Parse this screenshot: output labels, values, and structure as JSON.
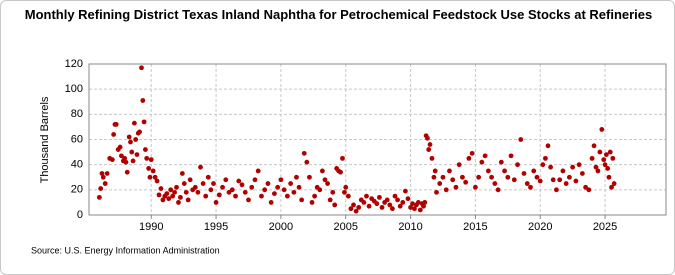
{
  "chart_data": {
    "type": "scatter",
    "title": "Monthly Refining District Texas Inland Naphtha for Petrochemical Feedstock Use Stocks at Refineries",
    "ylabel": "Thousand Barrels",
    "source": "Source: U.S. Energy Information Administration",
    "color": "#b00000",
    "grid": true,
    "xlim": [
      1985.2,
      2029.7
    ],
    "xticks": [
      1990,
      1995,
      2000,
      2005,
      2010,
      2015,
      2020,
      2025
    ],
    "ylim": [
      0,
      120
    ],
    "yticks": [
      0,
      20,
      40,
      60,
      80,
      100,
      120
    ],
    "x": [
      1986.0,
      1986.1,
      1986.2,
      1986.3,
      1986.45,
      1986.6,
      1986.8,
      1987.0,
      1987.1,
      1987.2,
      1987.3,
      1987.45,
      1987.6,
      1987.7,
      1987.85,
      1987.95,
      1988.05,
      1988.15,
      1988.3,
      1988.4,
      1988.5,
      1988.6,
      1988.7,
      1988.8,
      1988.9,
      1989.0,
      1989.1,
      1989.25,
      1989.35,
      1989.45,
      1989.55,
      1989.65,
      1989.8,
      1989.9,
      1990.0,
      1990.15,
      1990.3,
      1990.45,
      1990.6,
      1990.75,
      1990.9,
      1991.05,
      1991.2,
      1991.35,
      1991.5,
      1991.65,
      1991.8,
      1991.95,
      1992.1,
      1992.25,
      1992.4,
      1992.55,
      1992.7,
      1992.85,
      1993.0,
      1993.2,
      1993.4,
      1993.6,
      1993.8,
      1994.0,
      1994.2,
      1994.4,
      1994.6,
      1994.8,
      1995.0,
      1995.25,
      1995.5,
      1995.75,
      1996.0,
      1996.25,
      1996.5,
      1996.75,
      1997.0,
      1997.25,
      1997.5,
      1997.75,
      1998.0,
      1998.25,
      1998.5,
      1998.75,
      1999.0,
      1999.25,
      1999.5,
      1999.75,
      2000.0,
      2000.25,
      2000.5,
      2000.75,
      2001.0,
      2001.2,
      2001.4,
      2001.6,
      2001.8,
      2002.0,
      2002.2,
      2002.4,
      2002.6,
      2002.8,
      2003.0,
      2003.2,
      2003.4,
      2003.6,
      2003.8,
      2004.0,
      2004.15,
      2004.3,
      2004.45,
      2004.6,
      2004.75,
      2004.9,
      2005.0,
      2005.2,
      2005.4,
      2005.6,
      2005.8,
      2006.0,
      2006.2,
      2006.4,
      2006.6,
      2006.8,
      2007.0,
      2007.2,
      2007.4,
      2007.6,
      2007.8,
      2008.0,
      2008.2,
      2008.4,
      2008.6,
      2008.8,
      2009.0,
      2009.2,
      2009.4,
      2009.6,
      2009.8,
      2010.0,
      2010.15,
      2010.3,
      2010.45,
      2010.6,
      2010.75,
      2010.9,
      2011.0,
      2011.1,
      2011.2,
      2011.3,
      2011.4,
      2011.5,
      2011.65,
      2011.8,
      2011.9,
      2012.0,
      2012.25,
      2012.5,
      2012.75,
      2013.0,
      2013.25,
      2013.5,
      2013.75,
      2014.0,
      2014.25,
      2014.5,
      2014.75,
      2015.0,
      2015.25,
      2015.5,
      2015.75,
      2016.0,
      2016.25,
      2016.5,
      2016.75,
      2017.0,
      2017.25,
      2017.5,
      2017.75,
      2018.0,
      2018.25,
      2018.5,
      2018.75,
      2019.0,
      2019.25,
      2019.5,
      2019.75,
      2020.0,
      2020.2,
      2020.4,
      2020.6,
      2020.8,
      2021.0,
      2021.25,
      2021.5,
      2021.75,
      2022.0,
      2022.25,
      2022.5,
      2022.75,
      2023.0,
      2023.25,
      2023.5,
      2023.75,
      2024.0,
      2024.15,
      2024.3,
      2024.45,
      2024.6,
      2024.75,
      2024.9,
      2025.0,
      2025.1,
      2025.2,
      2025.3,
      2025.4,
      2025.5,
      2025.6,
      2025.7
    ],
    "values": [
      14,
      21,
      33,
      30,
      25,
      33,
      45,
      44,
      64,
      72,
      72,
      52,
      54,
      47,
      43,
      45,
      42,
      34,
      62,
      58,
      50,
      43,
      73,
      60,
      48,
      65,
      66,
      117,
      91,
      74,
      52,
      45,
      37,
      30,
      44,
      35,
      30,
      27,
      16,
      21,
      12,
      15,
      17,
      13,
      20,
      15,
      18,
      22,
      10,
      14,
      33,
      25,
      18,
      12,
      28,
      20,
      22,
      18,
      38,
      25,
      15,
      30,
      20,
      25,
      10,
      16,
      22,
      28,
      18,
      20,
      15,
      27,
      24,
      18,
      12,
      22,
      28,
      35,
      15,
      20,
      25,
      10,
      17,
      22,
      28,
      20,
      15,
      25,
      18,
      30,
      22,
      12,
      49,
      42,
      30,
      10,
      15,
      22,
      20,
      35,
      28,
      25,
      12,
      18,
      8,
      37,
      35,
      34,
      45,
      18,
      22,
      15,
      5,
      8,
      3,
      6,
      12,
      10,
      15,
      7,
      13,
      11,
      9,
      14,
      6,
      10,
      12,
      8,
      5,
      15,
      12,
      7,
      10,
      19,
      13,
      6,
      9,
      5,
      8,
      10,
      4,
      9,
      7,
      10,
      63,
      61,
      52,
      56,
      45,
      30,
      35,
      18,
      25,
      30,
      20,
      35,
      28,
      22,
      40,
      30,
      26,
      45,
      49,
      22,
      30,
      42,
      47,
      35,
      30,
      25,
      20,
      42,
      35,
      30,
      47,
      28,
      40,
      60,
      33,
      25,
      22,
      35,
      30,
      27,
      40,
      45,
      55,
      38,
      28,
      20,
      28,
      35,
      25,
      30,
      38,
      27,
      40,
      33,
      22,
      20,
      45,
      55,
      38,
      35,
      50,
      68,
      44,
      40,
      48,
      37,
      30,
      50,
      22,
      45,
      25
    ]
  }
}
